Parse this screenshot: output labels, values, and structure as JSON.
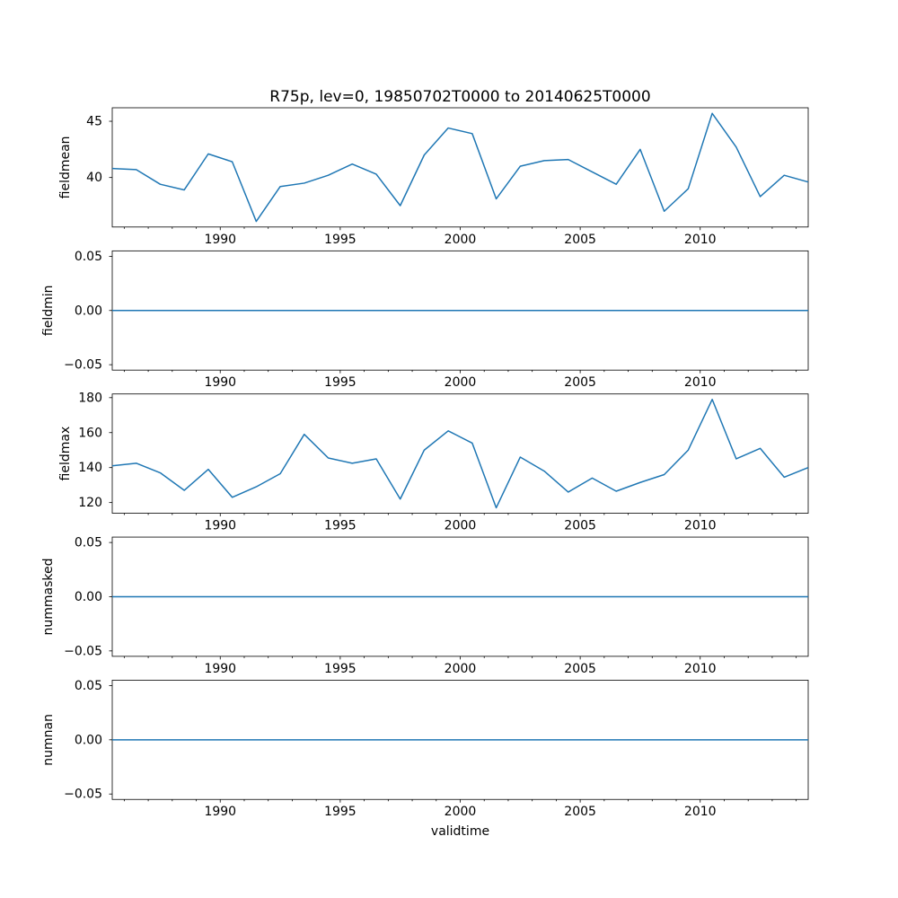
{
  "figure": {
    "title": "R75p, lev=0, 19850702T0000 to 20140625T0000",
    "xlabel": "validtime",
    "line_color": "#1f77b4",
    "background_color": "#ffffff",
    "text_color": "#000000",
    "spine_color": "#000000"
  },
  "x_axis": {
    "xlim": [
      1985.5,
      2014.5
    ],
    "major_ticks": [
      {
        "v": 1990,
        "label": "1990"
      },
      {
        "v": 1995,
        "label": "1995"
      },
      {
        "v": 2000,
        "label": "2000"
      },
      {
        "v": 2005,
        "label": "2005"
      },
      {
        "v": 2010,
        "label": "2010"
      }
    ],
    "minor_tick_interval_years": 1,
    "x": [
      1985.5,
      1986.5,
      1987.5,
      1988.5,
      1989.5,
      1990.5,
      1991.5,
      1992.5,
      1993.5,
      1994.5,
      1995.5,
      1996.5,
      1997.5,
      1998.5,
      1999.5,
      2000.5,
      2001.5,
      2002.5,
      2003.5,
      2004.5,
      2005.5,
      2006.5,
      2007.5,
      2008.5,
      2009.5,
      2010.5,
      2011.5,
      2012.5,
      2013.5,
      2014.5
    ]
  },
  "chart_data": [
    {
      "type": "line",
      "ylabel": "fieldmean",
      "ylim": [
        35.6,
        46.2
      ],
      "yticks": [
        {
          "v": 45,
          "label": "45"
        },
        {
          "v": 40,
          "label": "40"
        }
      ],
      "values": [
        40.8,
        40.7,
        39.4,
        38.9,
        42.1,
        41.4,
        36.1,
        39.2,
        39.5,
        40.2,
        41.2,
        40.3,
        37.5,
        42.0,
        44.4,
        43.9,
        38.1,
        41.0,
        41.5,
        41.6,
        40.5,
        39.4,
        42.5,
        37.0,
        39.0,
        45.7,
        42.7,
        38.3,
        40.2,
        39.6
      ]
    },
    {
      "type": "line",
      "ylabel": "fieldmin",
      "ylim": [
        -0.055,
        0.055
      ],
      "yticks": [
        {
          "v": 0.05,
          "label": "0.05"
        },
        {
          "v": 0.0,
          "label": "0.00"
        },
        {
          "v": -0.05,
          "label": "−0.05"
        }
      ],
      "values": [
        0,
        0,
        0,
        0,
        0,
        0,
        0,
        0,
        0,
        0,
        0,
        0,
        0,
        0,
        0,
        0,
        0,
        0,
        0,
        0,
        0,
        0,
        0,
        0,
        0,
        0,
        0,
        0,
        0,
        0
      ]
    },
    {
      "type": "line",
      "ylabel": "fieldmax",
      "ylim": [
        113.9,
        182.1
      ],
      "yticks": [
        {
          "v": 180,
          "label": "180"
        },
        {
          "v": 160,
          "label": "160"
        },
        {
          "v": 140,
          "label": "140"
        },
        {
          "v": 120,
          "label": "120"
        }
      ],
      "values": [
        141,
        142.5,
        137,
        127,
        139,
        123,
        129,
        136.5,
        159,
        145.5,
        142.5,
        145,
        122,
        150,
        161,
        154,
        117,
        146,
        138,
        126,
        134,
        126.5,
        131.5,
        136,
        150,
        179,
        145,
        151,
        134.5,
        140
      ]
    },
    {
      "type": "line",
      "ylabel": "nummasked",
      "ylim": [
        -0.055,
        0.055
      ],
      "yticks": [
        {
          "v": 0.05,
          "label": "0.05"
        },
        {
          "v": 0.0,
          "label": "0.00"
        },
        {
          "v": -0.05,
          "label": "−0.05"
        }
      ],
      "values": [
        0,
        0,
        0,
        0,
        0,
        0,
        0,
        0,
        0,
        0,
        0,
        0,
        0,
        0,
        0,
        0,
        0,
        0,
        0,
        0,
        0,
        0,
        0,
        0,
        0,
        0,
        0,
        0,
        0,
        0
      ]
    },
    {
      "type": "line",
      "ylabel": "numnan",
      "ylim": [
        -0.055,
        0.055
      ],
      "yticks": [
        {
          "v": 0.05,
          "label": "0.05"
        },
        {
          "v": 0.0,
          "label": "0.00"
        },
        {
          "v": -0.05,
          "label": "−0.05"
        }
      ],
      "values": [
        0,
        0,
        0,
        0,
        0,
        0,
        0,
        0,
        0,
        0,
        0,
        0,
        0,
        0,
        0,
        0,
        0,
        0,
        0,
        0,
        0,
        0,
        0,
        0,
        0,
        0,
        0,
        0,
        0,
        0
      ]
    }
  ]
}
